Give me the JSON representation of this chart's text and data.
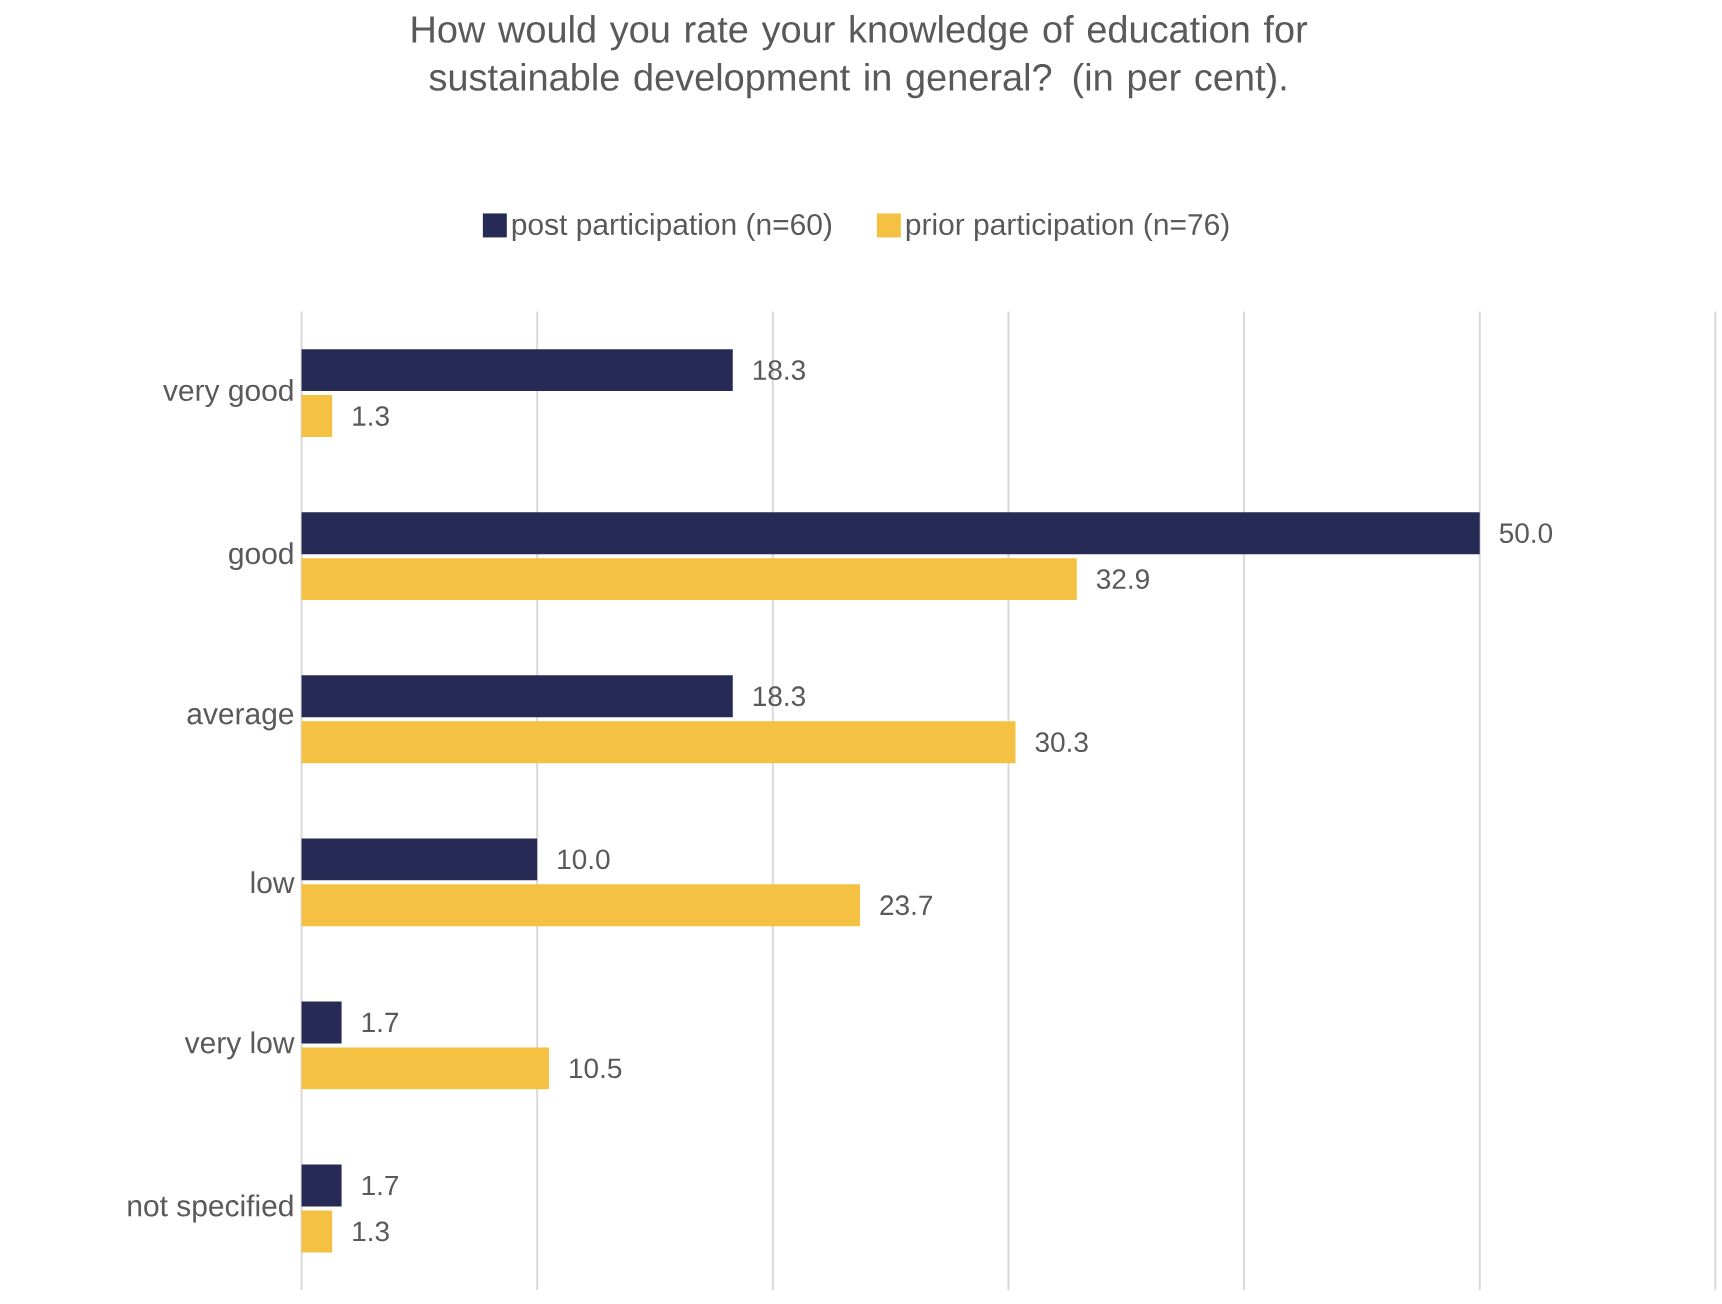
{
  "chart_data": {
    "type": "bar",
    "orientation": "horizontal",
    "title": "How would you rate your knowledge of education for sustainable development in general? (in per cent).",
    "categories": [
      "very good",
      "good",
      "average",
      "low",
      "very low",
      "not specified"
    ],
    "series": [
      {
        "name": "post participation (n=60)",
        "color": "#262a55",
        "values": [
          18.3,
          50.0,
          18.3,
          10.0,
          1.7,
          1.7
        ],
        "value_labels": [
          "18.3",
          "50.0",
          "18.3",
          "10.0",
          "1.7",
          "1.7"
        ]
      },
      {
        "name": "prior participation (n=76)",
        "color": "#f4c142",
        "values": [
          1.3,
          32.9,
          30.3,
          23.7,
          10.5,
          1.3
        ],
        "value_labels": [
          "1.3",
          "32.9",
          "30.3",
          "23.7",
          "10.5",
          "1.3"
        ]
      }
    ],
    "xlim": [
      0,
      60
    ],
    "xticks": [
      {
        "value": 0,
        "label": null
      },
      {
        "value": 10,
        "label": null
      },
      {
        "value": 20,
        "label": null
      },
      {
        "value": 30,
        "label": null
      },
      {
        "value": 40,
        "label": null
      },
      {
        "value": 50,
        "label": null
      },
      {
        "value": 60,
        "label": null
      }
    ],
    "grid": "x",
    "legend": "top",
    "tick_labels": "y"
  }
}
